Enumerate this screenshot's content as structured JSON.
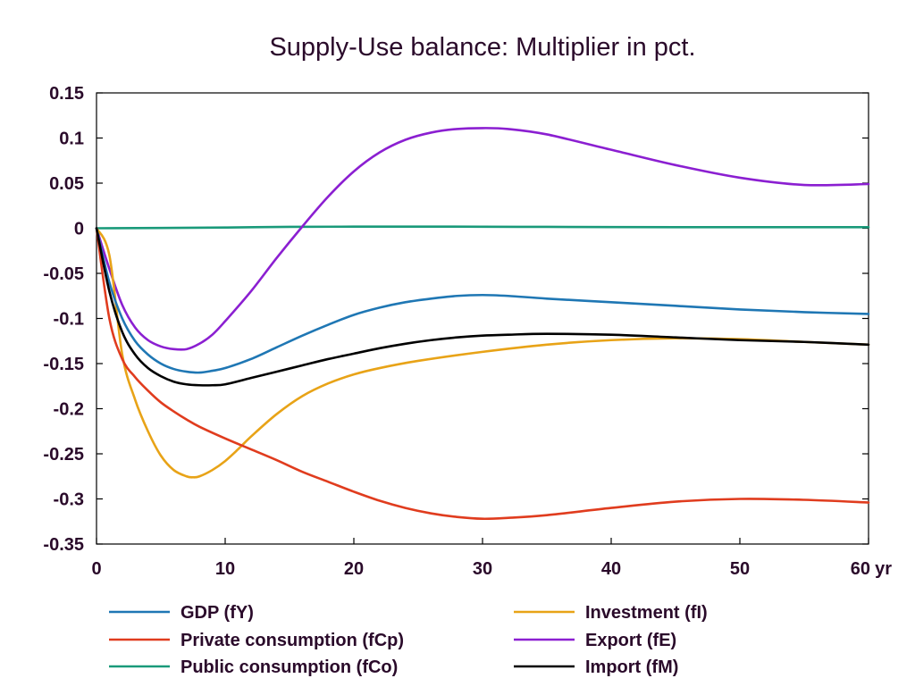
{
  "chart_data": {
    "type": "line",
    "title": "Supply-Use balance: Multiplier in pct.",
    "xlabel": "",
    "ylabel": "",
    "x_unit_label": "yr",
    "xlim": [
      0,
      60
    ],
    "ylim": [
      -0.35,
      0.15
    ],
    "x_ticks": [
      0,
      10,
      20,
      30,
      40,
      50,
      60
    ],
    "x_tick_labels": [
      "0",
      "10",
      "20",
      "30",
      "40",
      "50",
      "60"
    ],
    "y_ticks": [
      0.15,
      0.1,
      0.05,
      0,
      -0.05,
      -0.1,
      -0.15,
      -0.2,
      -0.25,
      -0.3,
      -0.35
    ],
    "y_tick_labels": [
      "0.15",
      "0.1",
      "0.05",
      "0",
      "-0.05",
      "-0.1",
      "-0.15",
      "-0.2",
      "-0.25",
      "-0.3",
      "-0.35"
    ],
    "grid": false,
    "legend_position": "bottom",
    "series": [
      {
        "name": "GDP (fY)",
        "color": "#1f77b4",
        "x": [
          0,
          1,
          2,
          3,
          4,
          5,
          6,
          7,
          8,
          9,
          10,
          12,
          14,
          16,
          18,
          20,
          22,
          24,
          26,
          28,
          30,
          32,
          35,
          40,
          45,
          50,
          55,
          60
        ],
        "y": [
          0,
          -0.06,
          -0.1,
          -0.125,
          -0.14,
          -0.15,
          -0.156,
          -0.159,
          -0.16,
          -0.158,
          -0.155,
          -0.145,
          -0.132,
          -0.119,
          -0.107,
          -0.096,
          -0.088,
          -0.082,
          -0.078,
          -0.075,
          -0.074,
          -0.075,
          -0.078,
          -0.082,
          -0.086,
          -0.09,
          -0.093,
          -0.095
        ]
      },
      {
        "name": "Private consumption (fCp)",
        "color": "#e03c1e",
        "x": [
          0,
          1,
          2,
          3,
          4,
          5,
          6,
          7,
          8,
          10,
          12,
          14,
          16,
          18,
          20,
          22,
          24,
          26,
          28,
          30,
          32,
          35,
          40,
          45,
          50,
          55,
          60
        ],
        "y": [
          0,
          -0.1,
          -0.145,
          -0.165,
          -0.18,
          -0.193,
          -0.203,
          -0.212,
          -0.22,
          -0.233,
          -0.245,
          -0.257,
          -0.27,
          -0.281,
          -0.292,
          -0.302,
          -0.31,
          -0.316,
          -0.32,
          -0.322,
          -0.321,
          -0.318,
          -0.31,
          -0.303,
          -0.3,
          -0.301,
          -0.304
        ]
      },
      {
        "name": "Public consumption (fCo)",
        "color": "#1a9a7a",
        "x": [
          0,
          5,
          10,
          15,
          20,
          25,
          30,
          35,
          40,
          45,
          50,
          55,
          60
        ],
        "y": [
          0,
          0.0003,
          0.0008,
          0.0015,
          0.0018,
          0.0018,
          0.0017,
          0.0015,
          0.0013,
          0.0012,
          0.0012,
          0.0012,
          0.0012
        ]
      },
      {
        "name": "Investment (fI)",
        "color": "#e8a317",
        "x": [
          0,
          1,
          2,
          3,
          4,
          5,
          6,
          7,
          7.5,
          8,
          9,
          10,
          11,
          12,
          14,
          16,
          18,
          20,
          22,
          25,
          30,
          35,
          40,
          45,
          50,
          55,
          60
        ],
        "y": [
          0,
          -0.03,
          -0.14,
          -0.19,
          -0.225,
          -0.252,
          -0.268,
          -0.275,
          -0.276,
          -0.275,
          -0.268,
          -0.258,
          -0.245,
          -0.231,
          -0.206,
          -0.186,
          -0.172,
          -0.162,
          -0.155,
          -0.147,
          -0.137,
          -0.129,
          -0.124,
          -0.122,
          -0.123,
          -0.126,
          -0.129
        ]
      },
      {
        "name": "Export (fE)",
        "color": "#8b1fd1",
        "x": [
          0,
          1,
          2,
          3,
          4,
          5,
          6,
          7,
          8,
          9,
          10,
          12,
          14,
          16,
          18,
          20,
          22,
          24,
          26,
          28,
          30,
          32,
          35,
          40,
          45,
          50,
          55,
          60
        ],
        "y": [
          0,
          -0.045,
          -0.085,
          -0.11,
          -0.124,
          -0.131,
          -0.134,
          -0.134,
          -0.128,
          -0.118,
          -0.103,
          -0.07,
          -0.033,
          0.002,
          0.035,
          0.063,
          0.084,
          0.098,
          0.106,
          0.11,
          0.111,
          0.11,
          0.104,
          0.087,
          0.07,
          0.056,
          0.048,
          0.049
        ]
      },
      {
        "name": "Import (fM)",
        "color": "#000000",
        "x": [
          0,
          1,
          2,
          3,
          4,
          5,
          6,
          7,
          8,
          9,
          10,
          12,
          14,
          16,
          18,
          20,
          22,
          24,
          26,
          28,
          30,
          32,
          35,
          40,
          45,
          50,
          55,
          60
        ],
        "y": [
          0,
          -0.07,
          -0.115,
          -0.14,
          -0.155,
          -0.164,
          -0.17,
          -0.173,
          -0.174,
          -0.174,
          -0.173,
          -0.166,
          -0.159,
          -0.152,
          -0.145,
          -0.139,
          -0.133,
          -0.128,
          -0.124,
          -0.121,
          -0.119,
          -0.118,
          -0.117,
          -0.118,
          -0.121,
          -0.124,
          -0.126,
          -0.129
        ]
      }
    ]
  }
}
